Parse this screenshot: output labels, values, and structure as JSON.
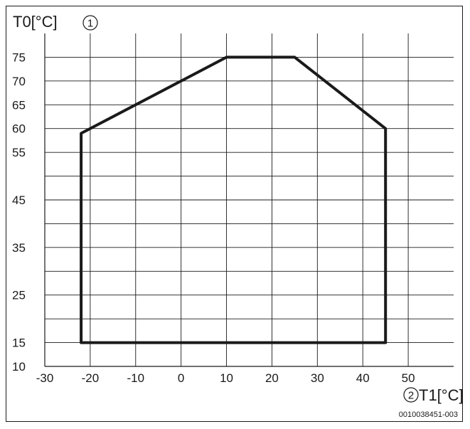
{
  "chart_data": {
    "type": "line",
    "ylabel": "T0[°C]",
    "ylabel_marker": "1",
    "xlabel": "T1[°C]",
    "xlabel_marker": "2",
    "figure_id": "0010038451-003",
    "xlim": [
      -30,
      60
    ],
    "ylim": [
      10,
      80
    ],
    "x_ticks": [
      -30,
      -20,
      -10,
      0,
      10,
      20,
      30,
      40,
      50
    ],
    "y_ticks": [
      10,
      15,
      25,
      35,
      45,
      55,
      60,
      65,
      70,
      75
    ],
    "x_gridlines": [
      -20,
      -10,
      0,
      10,
      20,
      30,
      40,
      50
    ],
    "y_gridlines": [
      15,
      20,
      25,
      30,
      35,
      40,
      45,
      50,
      55,
      60,
      65,
      70,
      75
    ],
    "grid": true,
    "series": [
      {
        "closed": true,
        "x": [
          -22,
          10,
          25,
          45,
          45,
          -22
        ],
        "y": [
          59,
          75,
          75,
          60,
          15,
          15
        ]
      }
    ]
  }
}
